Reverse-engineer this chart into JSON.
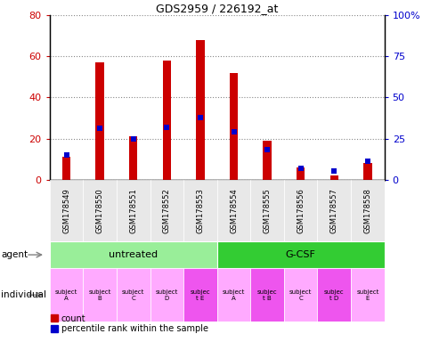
{
  "title": "GDS2959 / 226192_at",
  "samples": [
    "GSM178549",
    "GSM178550",
    "GSM178551",
    "GSM178552",
    "GSM178553",
    "GSM178554",
    "GSM178555",
    "GSM178556",
    "GSM178557",
    "GSM178558"
  ],
  "count_values": [
    11,
    57,
    21,
    58,
    68,
    52,
    19,
    6,
    2,
    8
  ],
  "percentile_values": [
    15,
    31,
    25,
    32,
    38,
    29,
    18,
    7,
    5,
    11
  ],
  "ylim_left": [
    0,
    80
  ],
  "ylim_right": [
    0,
    100
  ],
  "yticks_left": [
    0,
    20,
    40,
    60,
    80
  ],
  "yticks_right": [
    0,
    25,
    50,
    75,
    100
  ],
  "ytick_labels_right": [
    "0",
    "25",
    "50",
    "75",
    "100%"
  ],
  "bar_color": "#cc0000",
  "percentile_color": "#0000cc",
  "agent_groups": [
    {
      "label": "untreated",
      "start": 0,
      "end": 5,
      "color": "#99ee99"
    },
    {
      "label": "G-CSF",
      "start": 5,
      "end": 10,
      "color": "#33cc33"
    }
  ],
  "individual_labels": [
    "subject\nA",
    "subject\nB",
    "subject\nC",
    "subject\nD",
    "subjec\nt E",
    "subject\nA",
    "subjec\nt B",
    "subject\nC",
    "subjec\nt D",
    "subject\nE"
  ],
  "individual_highlight": [
    4,
    6,
    8
  ],
  "individual_bg_normal": "#ffaaff",
  "individual_bg_highlight": "#ee55ee",
  "agent_label": "agent",
  "individual_label": "individual",
  "legend_count": "count",
  "legend_percentile": "percentile rank within the sample",
  "bar_width": 0.25,
  "marker_size": 4.5,
  "bg_color": "#e8e8e8"
}
